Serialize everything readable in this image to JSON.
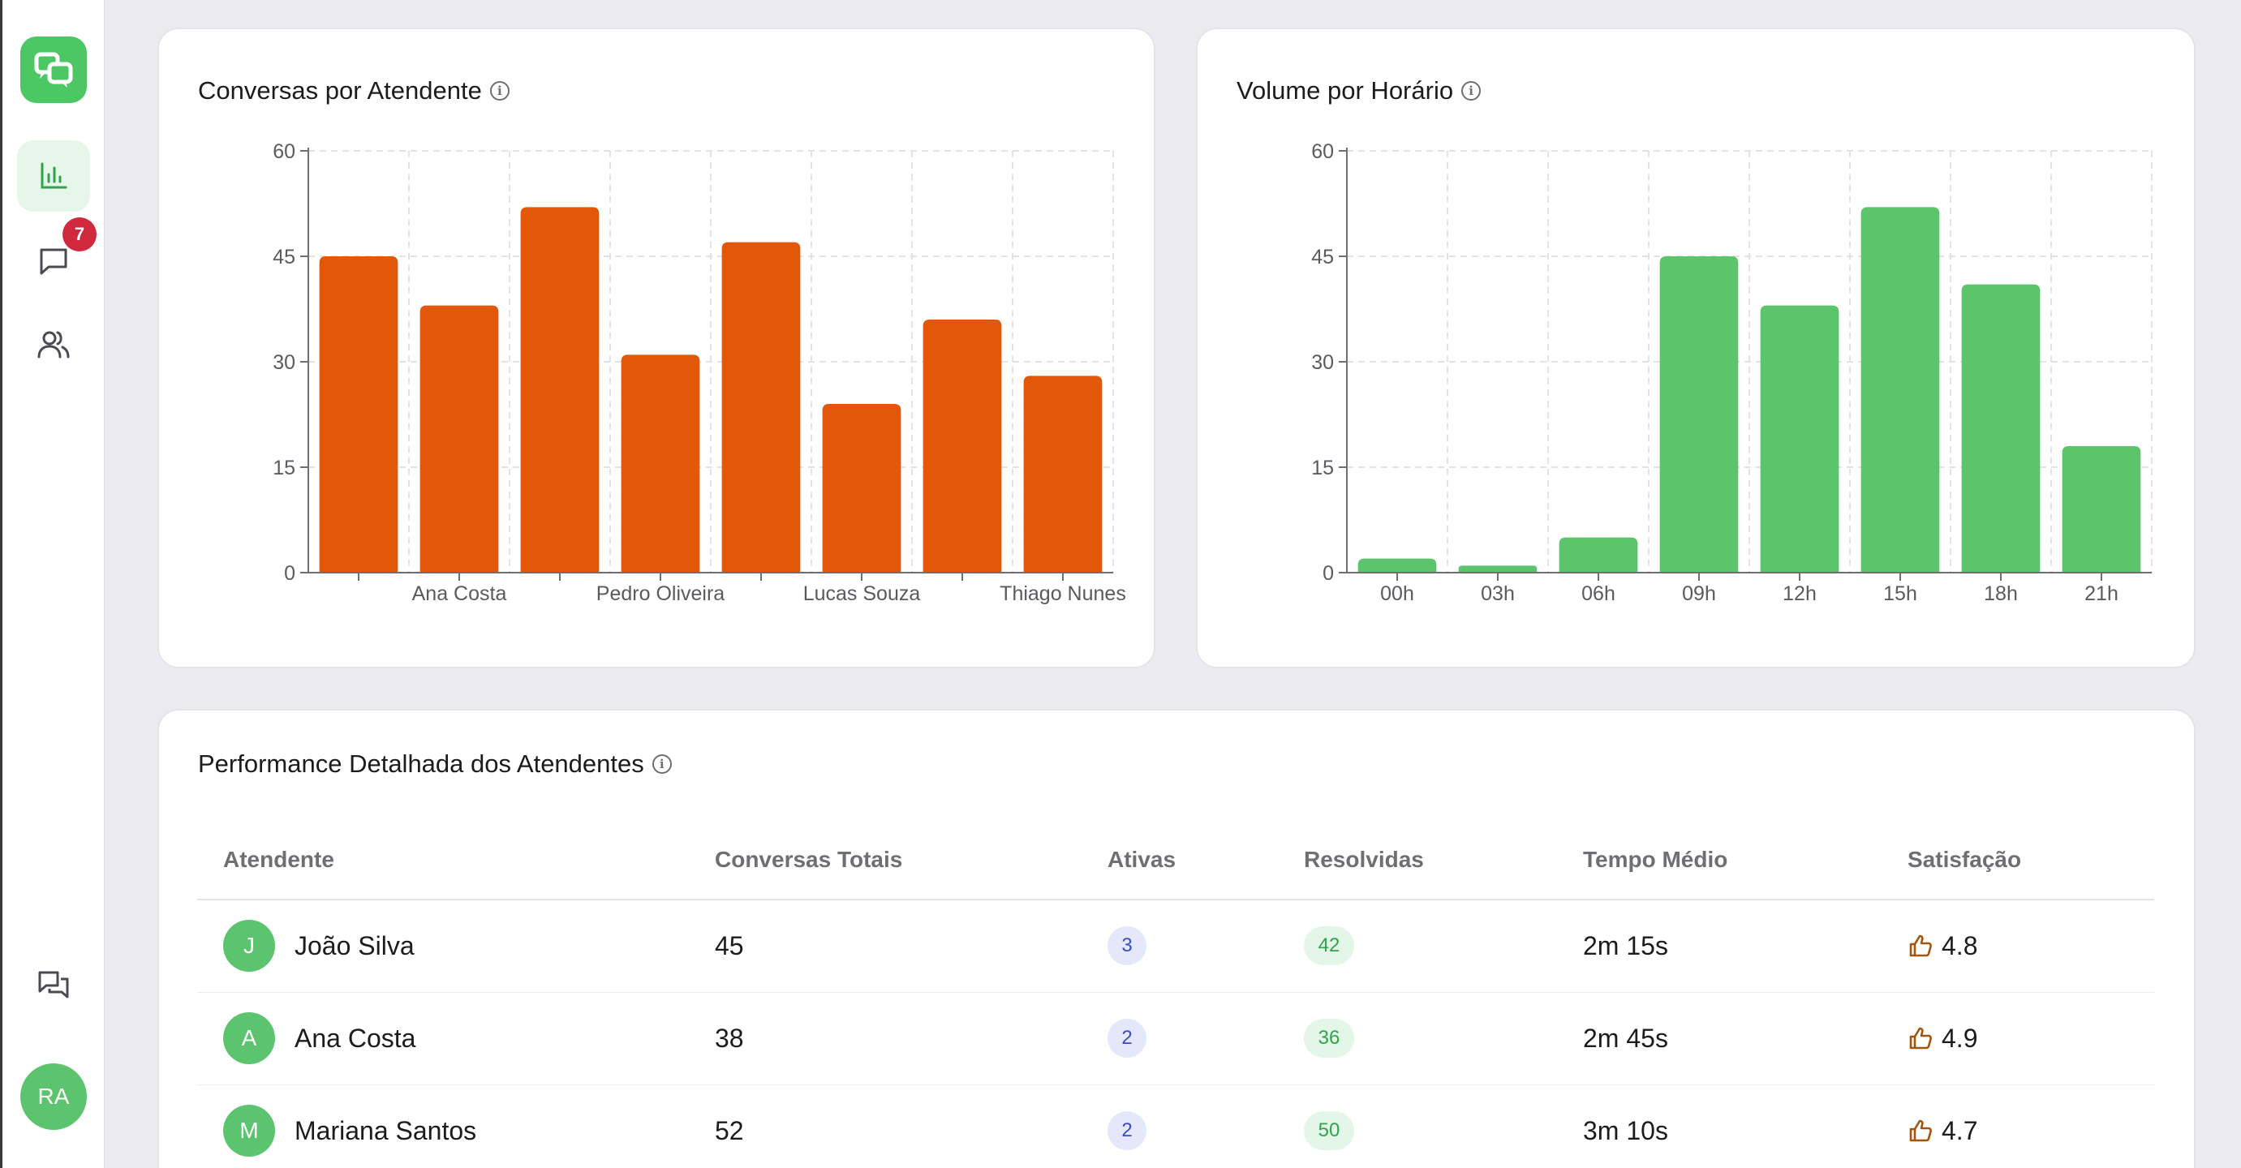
{
  "sidebar": {
    "items": [
      {
        "name": "dashboard",
        "icon": "bar-chart-icon",
        "active": true
      },
      {
        "name": "conversations",
        "icon": "message-icon",
        "badge": "7"
      },
      {
        "name": "team",
        "icon": "users-icon"
      }
    ],
    "bottom_icon": "chats-icon",
    "user_initials": "RA"
  },
  "cards": {
    "agents_chart_title": "Conversas por Atendente",
    "hourly_chart_title": "Volume por Horário",
    "table_title": "Performance Detalhada dos Atendentes"
  },
  "chart_data": [
    {
      "type": "bar",
      "title": "Conversas por Atendente",
      "categories": [
        "",
        "Ana Costa",
        "",
        "Pedro Oliveira",
        "",
        "Lucas Souza",
        "",
        "Thiago Nunes"
      ],
      "values": [
        45,
        38,
        52,
        31,
        47,
        24,
        36,
        28
      ],
      "ylim": [
        0,
        60
      ],
      "yticks": [
        "0",
        "15",
        "30",
        "45",
        "60"
      ],
      "grid": true,
      "color": "#e35808"
    },
    {
      "type": "bar",
      "title": "Volume por Horário",
      "categories": [
        "00h",
        "03h",
        "06h",
        "09h",
        "12h",
        "15h",
        "18h",
        "21h"
      ],
      "values": [
        2,
        1,
        5,
        45,
        38,
        52,
        41,
        18
      ],
      "ylim": [
        0,
        60
      ],
      "yticks": [
        "0",
        "15",
        "30",
        "45",
        "60"
      ],
      "grid": true,
      "color": "#5cc46b"
    }
  ],
  "table": {
    "headers": [
      "Atendente",
      "Conversas Totais",
      "Ativas",
      "Resolvidas",
      "Tempo Médio",
      "Satisfação"
    ],
    "rows": [
      {
        "initial": "J",
        "name": "João Silva",
        "total": "45",
        "active": "3",
        "resolved": "42",
        "avg_time": "2m 15s",
        "satisfaction": "4.8"
      },
      {
        "initial": "A",
        "name": "Ana Costa",
        "total": "38",
        "active": "2",
        "resolved": "36",
        "avg_time": "2m 45s",
        "satisfaction": "4.9"
      },
      {
        "initial": "M",
        "name": "Mariana Santos",
        "total": "52",
        "active": "2",
        "resolved": "50",
        "avg_time": "3m 10s",
        "satisfaction": "4.7"
      }
    ]
  },
  "colors": {
    "brand": "#4cc764",
    "badge": "#d0283c",
    "thumb": "#a0560e"
  }
}
